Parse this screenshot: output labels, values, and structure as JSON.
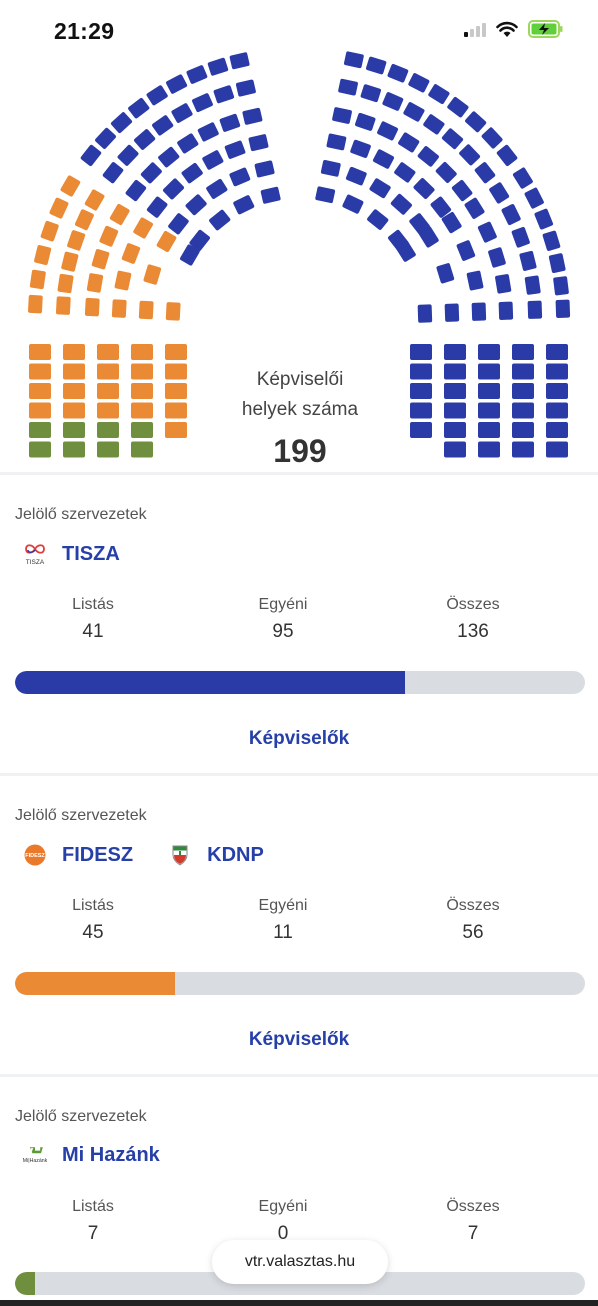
{
  "status_bar": {
    "time": "21:29"
  },
  "chart": {
    "caption_line1": "Képviselői",
    "caption_line2": "helyek száma",
    "total": "199",
    "colors": {
      "tisza": "#2a3ba8",
      "fidesz": "#ea8a35",
      "mihazank": "#6f8f3e"
    }
  },
  "parties": [
    {
      "section_label": "Jelölő szervezetek",
      "names": [
        "TISZA"
      ],
      "logos": [
        "tisza-logo-icon"
      ],
      "stats": {
        "list_label": "Listás",
        "list": "41",
        "individual_label": "Egyéni",
        "individual": "95",
        "total_label": "Összes",
        "total": "136"
      },
      "share": 0.6834,
      "color": "#2a3ba8",
      "link": "Képviselők"
    },
    {
      "section_label": "Jelölő szervezetek",
      "names": [
        "FIDESZ",
        "KDNP"
      ],
      "logos": [
        "fidesz-logo-icon",
        "kdnp-shield-icon"
      ],
      "stats": {
        "list_label": "Listás",
        "list": "45",
        "individual_label": "Egyéni",
        "individual": "11",
        "total_label": "Összes",
        "total": "56"
      },
      "share": 0.2814,
      "color": "#ea8a35",
      "link": "Képviselők"
    },
    {
      "section_label": "Jelölő szervezetek",
      "names": [
        "Mi Hazánk"
      ],
      "logos": [
        "mi-hazank-logo-icon"
      ],
      "stats": {
        "list_label": "Listás",
        "list": "7",
        "individual_label": "Egyéni",
        "individual": "0",
        "total_label": "Összes",
        "total": "7"
      },
      "share": 0.0352,
      "color": "#6f8f3e"
    }
  ],
  "browser": {
    "url": "vtr.valasztas.hu"
  }
}
